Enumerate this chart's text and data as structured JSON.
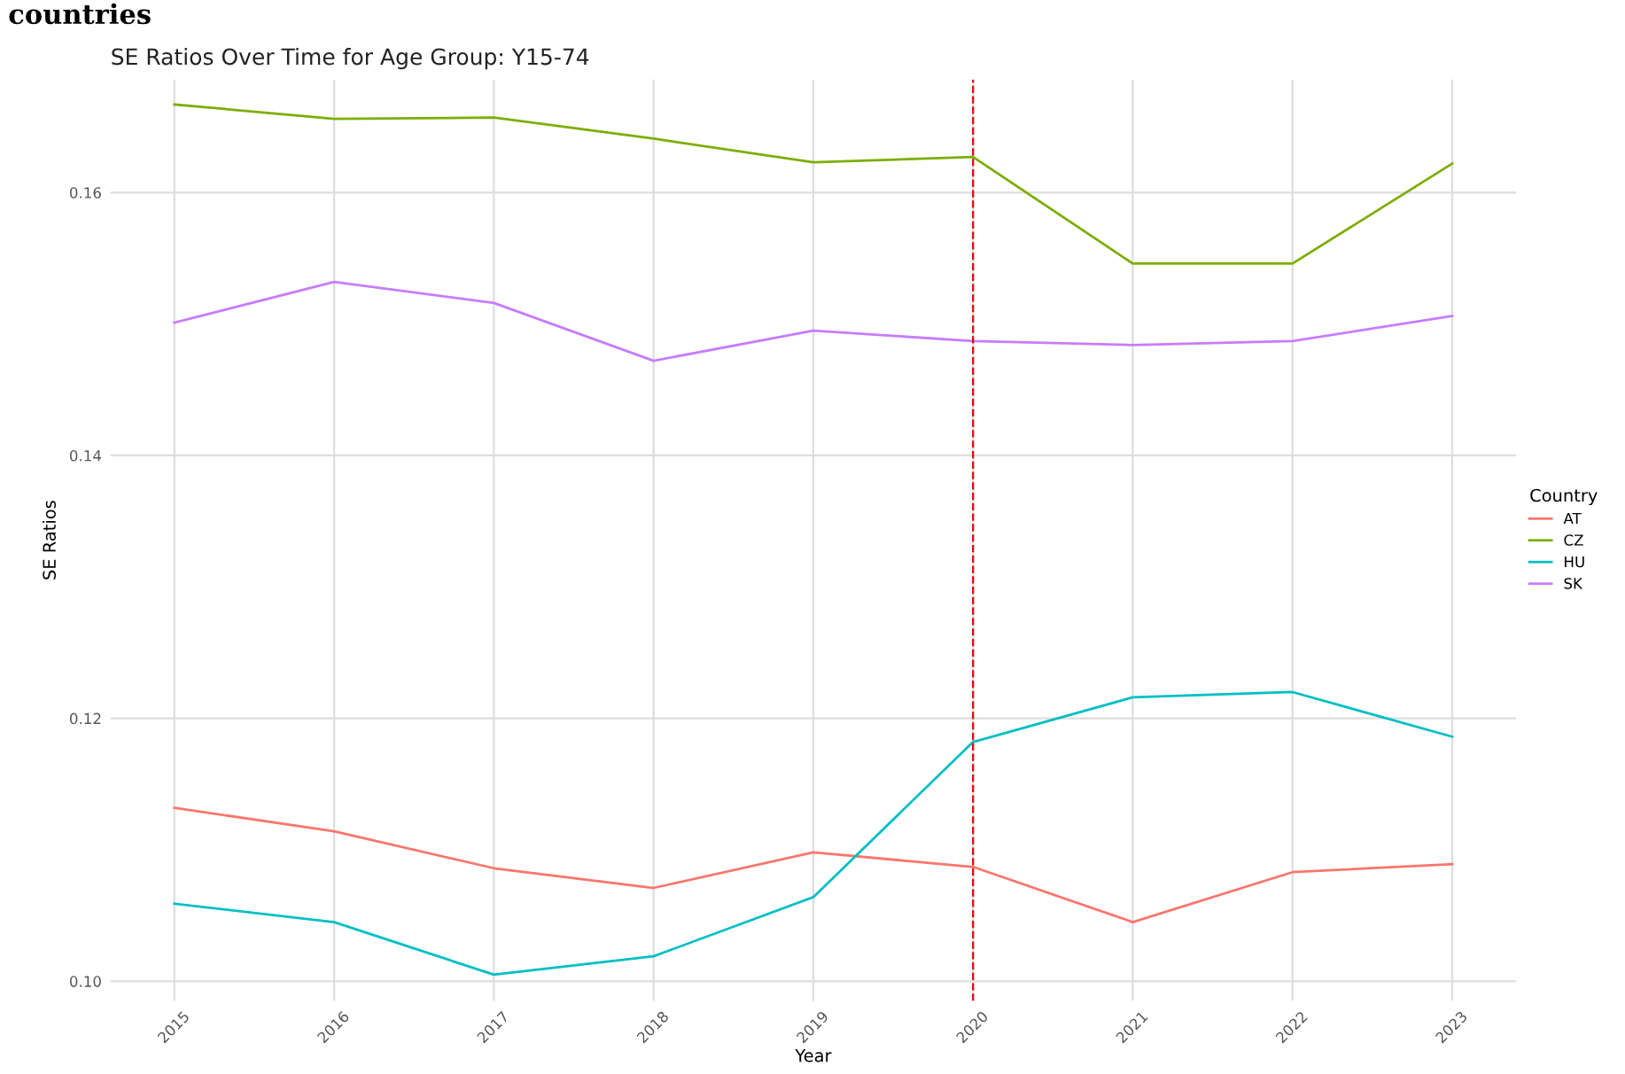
{
  "chart_data": {
    "type": "line",
    "title": "SE Ratios Over Time for Age Group: Y15-74",
    "xlabel": "Year",
    "ylabel": "SE Ratios",
    "legend_title": "Country",
    "legend": "right",
    "annotations": [
      "countries"
    ],
    "x": [
      2015,
      2016,
      2017,
      2018,
      2019,
      2020,
      2021,
      2022,
      2023
    ],
    "series": [
      {
        "name": "AT",
        "color": "#f8766d",
        "values": [
          0.1132,
          0.1114,
          0.1086,
          0.1071,
          0.1098,
          0.1087,
          0.1045,
          0.1083,
          0.1089
        ]
      },
      {
        "name": "CZ",
        "color": "#7cae00",
        "values": [
          0.1667,
          0.1656,
          0.1657,
          0.1641,
          0.1623,
          0.1627,
          0.1546,
          0.1546,
          0.1622
        ]
      },
      {
        "name": "HU",
        "color": "#00bfc4",
        "values": [
          0.1059,
          0.1045,
          0.1005,
          0.1019,
          0.1064,
          0.1182,
          0.1216,
          0.122,
          0.1186
        ]
      },
      {
        "name": "SK",
        "color": "#c77cff",
        "values": [
          0.1501,
          0.1532,
          0.1516,
          0.1472,
          0.1495,
          0.1487,
          0.1484,
          0.1487,
          0.1506
        ]
      }
    ],
    "xlim": [
      2014.6,
      2023.4
    ],
    "ylim": [
      0.0985,
      0.1686
    ],
    "xticks": [
      2015,
      2016,
      2017,
      2018,
      2019,
      2020,
      2021,
      2022,
      2023
    ],
    "yticks": [
      {
        "value": 0.1,
        "label": "0.10"
      },
      {
        "value": 0.12,
        "label": "0.12"
      },
      {
        "value": 0.14,
        "label": "0.14"
      },
      {
        "value": 0.16,
        "label": "0.16"
      }
    ],
    "ref_lines": [
      {
        "axis": "x",
        "value": 2020,
        "color": "#e8000b",
        "line_style": "dashed"
      }
    ],
    "grid": true,
    "line_style": "solid",
    "marker": "none"
  }
}
